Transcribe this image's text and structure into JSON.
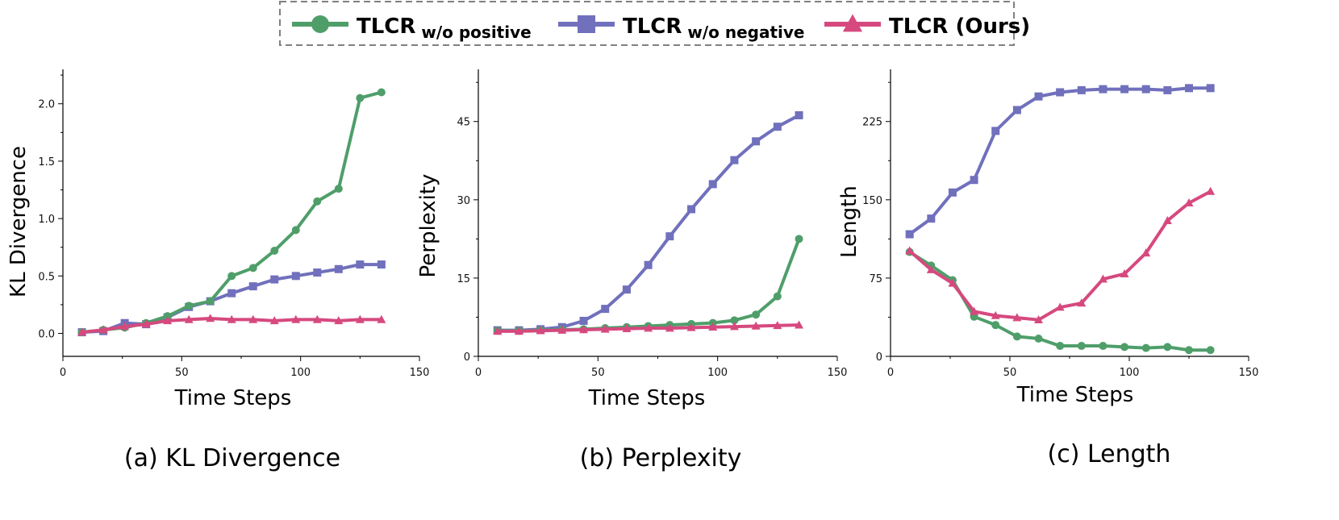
{
  "legend": {
    "items": [
      {
        "main": "TLCR",
        "sub": " w/o positive",
        "color": "#4f9e6a",
        "marker": "circle"
      },
      {
        "main": "TLCR",
        "sub": " w/o negative",
        "color": "#7070bd",
        "marker": "square"
      },
      {
        "main": "TLCR (Ours)",
        "sub": "",
        "color": "#d6497f",
        "marker": "triangle"
      }
    ]
  },
  "chart_data": [
    {
      "type": "line",
      "caption": "(a) KL Divergence",
      "xlabel": "Time Steps",
      "ylabel": "KL Divergence",
      "xlim": [
        0,
        150
      ],
      "ylim": [
        -0.2,
        2.3
      ],
      "xticks": [
        0,
        50,
        100,
        150
      ],
      "yticks": [
        0.0,
        0.5,
        1.0,
        1.5,
        2.0
      ],
      "ytick_labels": [
        "0.0",
        "0.5",
        "1.0",
        "1.5",
        "2.0"
      ],
      "x": [
        8,
        17,
        26,
        35,
        44,
        53,
        62,
        71,
        80,
        89,
        98,
        107,
        116,
        125,
        134
      ],
      "series": [
        {
          "name": "TLCR w/o positive",
          "values": [
            0.01,
            0.03,
            0.05,
            0.09,
            0.15,
            0.24,
            0.28,
            0.5,
            0.57,
            0.72,
            0.9,
            1.15,
            1.26,
            2.05,
            2.1
          ]
        },
        {
          "name": "TLCR w/o negative",
          "values": [
            0.01,
            0.02,
            0.09,
            0.08,
            0.14,
            0.23,
            0.28,
            0.35,
            0.41,
            0.47,
            0.5,
            0.53,
            0.56,
            0.6,
            0.6
          ]
        },
        {
          "name": "TLCR (Ours)",
          "values": [
            0.01,
            0.03,
            0.06,
            0.08,
            0.11,
            0.12,
            0.13,
            0.12,
            0.12,
            0.11,
            0.12,
            0.12,
            0.11,
            0.12,
            0.12
          ]
        }
      ]
    },
    {
      "type": "line",
      "caption": "(b) Perplexity",
      "xlabel": "Time Steps",
      "ylabel": "Perplexity",
      "xlim": [
        0,
        150
      ],
      "ylim": [
        0,
        55
      ],
      "xticks": [
        0,
        50,
        100,
        150
      ],
      "yticks": [
        0,
        15,
        30,
        45
      ],
      "ytick_labels": [
        "0",
        "15",
        "30",
        "45"
      ],
      "x": [
        8,
        17,
        26,
        35,
        44,
        53,
        62,
        71,
        80,
        89,
        98,
        107,
        116,
        125,
        134
      ],
      "series": [
        {
          "name": "TLCR w/o positive",
          "values": [
            4.9,
            4.9,
            5.0,
            5.1,
            5.2,
            5.4,
            5.6,
            5.8,
            6.0,
            6.2,
            6.4,
            6.9,
            8.0,
            11.5,
            22.5
          ]
        },
        {
          "name": "TLCR w/o negative",
          "values": [
            5.0,
            5.0,
            5.2,
            5.6,
            6.8,
            9.1,
            12.8,
            17.5,
            23.0,
            28.2,
            33.0,
            37.6,
            41.2,
            44.0,
            46.2
          ]
        },
        {
          "name": "TLCR (Ours)",
          "values": [
            4.8,
            4.8,
            4.9,
            5.0,
            5.1,
            5.2,
            5.3,
            5.4,
            5.4,
            5.5,
            5.6,
            5.7,
            5.8,
            5.9,
            6.0
          ]
        }
      ]
    },
    {
      "type": "line",
      "caption": "(c) Length",
      "xlabel": "Time Steps",
      "ylabel": "Length",
      "xlim": [
        0,
        150
      ],
      "ylim": [
        0,
        275
      ],
      "xticks": [
        0,
        50,
        100,
        150
      ],
      "yticks": [
        0,
        75,
        150,
        225
      ],
      "ytick_labels": [
        "0",
        "75",
        "150",
        "225"
      ],
      "x": [
        8,
        17,
        26,
        35,
        44,
        53,
        62,
        71,
        80,
        89,
        98,
        107,
        116,
        125,
        134
      ],
      "series": [
        {
          "name": "TLCR w/o positive",
          "values": [
            100,
            87,
            73,
            38,
            30,
            19,
            17,
            10,
            10,
            10,
            9,
            8,
            9,
            6,
            6
          ]
        },
        {
          "name": "TLCR w/o negative",
          "values": [
            117,
            132,
            157,
            169,
            216,
            236,
            249,
            253,
            255,
            256,
            256,
            256,
            255,
            257,
            257
          ]
        },
        {
          "name": "TLCR (Ours)",
          "values": [
            101,
            83,
            70,
            43,
            39,
            37,
            35,
            47,
            51,
            74,
            79,
            99,
            130,
            147,
            158
          ]
        }
      ]
    }
  ]
}
